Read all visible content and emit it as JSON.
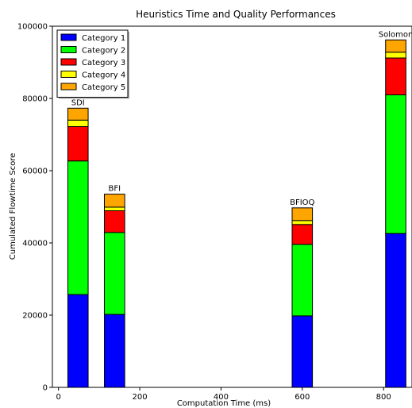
{
  "chart_data": {
    "type": "bar",
    "stacked": true,
    "title": "Heuristics Time and Quality Performances",
    "xlabel": "Computation Time (ms)",
    "ylabel": "Cumulated Flowtime Score",
    "xlim": [
      -15,
      870
    ],
    "ylim": [
      0,
      100000
    ],
    "xticks": [
      0,
      200,
      400,
      600,
      800
    ],
    "yticks": [
      0,
      20000,
      40000,
      60000,
      80000,
      100000
    ],
    "bar_width": 50,
    "legend_position": "top-left",
    "grid": false,
    "heuristics": [
      {
        "label": "SDI",
        "x": 48
      },
      {
        "label": "BFI",
        "x": 138
      },
      {
        "label": "BFIOQ",
        "x": 600
      },
      {
        "label": "Solomon",
        "x": 830
      }
    ],
    "series": [
      {
        "name": "Category 1",
        "color": "#0000ff",
        "values": [
          25700,
          20200,
          19800,
          42600
        ]
      },
      {
        "name": "Category 2",
        "color": "#00ff00",
        "values": [
          37000,
          22700,
          19800,
          38400
        ]
      },
      {
        "name": "Category 3",
        "color": "#ff0000",
        "values": [
          9500,
          6000,
          5500,
          10200
        ]
      },
      {
        "name": "Category 4",
        "color": "#ffff00",
        "values": [
          1800,
          1000,
          1100,
          1600
        ]
      },
      {
        "name": "Category 5",
        "color": "#ffa500",
        "values": [
          3300,
          3600,
          3500,
          3400
        ]
      }
    ]
  }
}
